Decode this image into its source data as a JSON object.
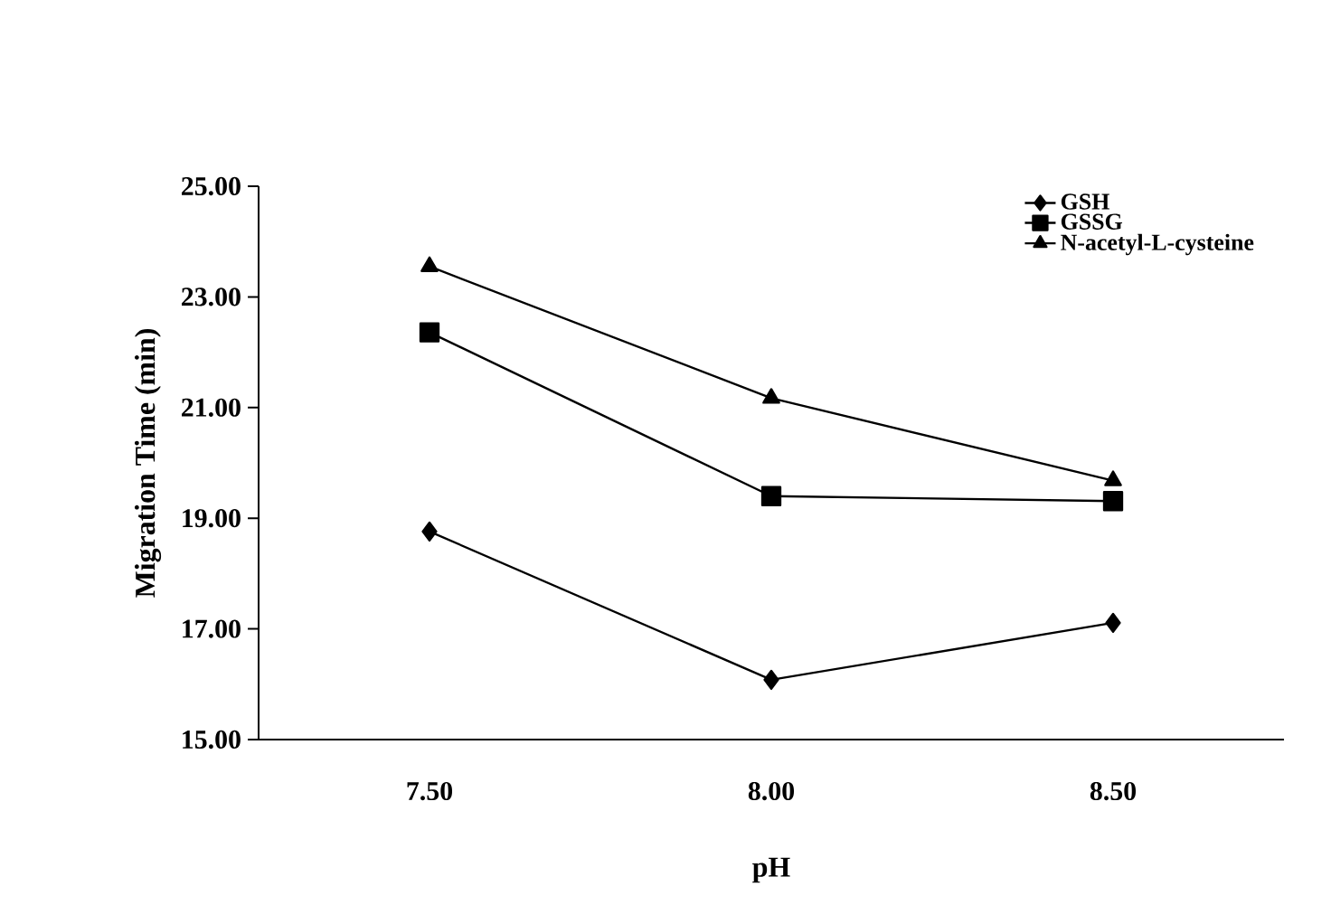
{
  "chart_data": {
    "type": "line",
    "xlabel": "pH",
    "ylabel": "Migration Time (min)",
    "categories": [
      "7.50",
      "8.00",
      "8.50"
    ],
    "series": [
      {
        "name": "GSH",
        "color": "#000000",
        "marker": "diamond",
        "values": [
          18.76,
          16.08,
          17.11
        ]
      },
      {
        "name": "GSSG",
        "color": "#000000",
        "marker": "square",
        "values": [
          22.36,
          19.4,
          19.31
        ]
      },
      {
        "name": "N-acetyl-L-cysteine",
        "color": "#000000",
        "marker": "triangle",
        "values": [
          23.55,
          21.17,
          19.68
        ]
      }
    ],
    "ylim": [
      15,
      25
    ],
    "yticks": [
      {
        "value": 15,
        "label": "15.00"
      },
      {
        "value": 17,
        "label": "17.00"
      },
      {
        "value": 19,
        "label": "19.00"
      },
      {
        "value": 21,
        "label": "21.00"
      },
      {
        "value": 23,
        "label": "23.00"
      },
      {
        "value": 25,
        "label": "25.00"
      }
    ],
    "grid": false,
    "legend": "top right",
    "line_style": "solid"
  }
}
